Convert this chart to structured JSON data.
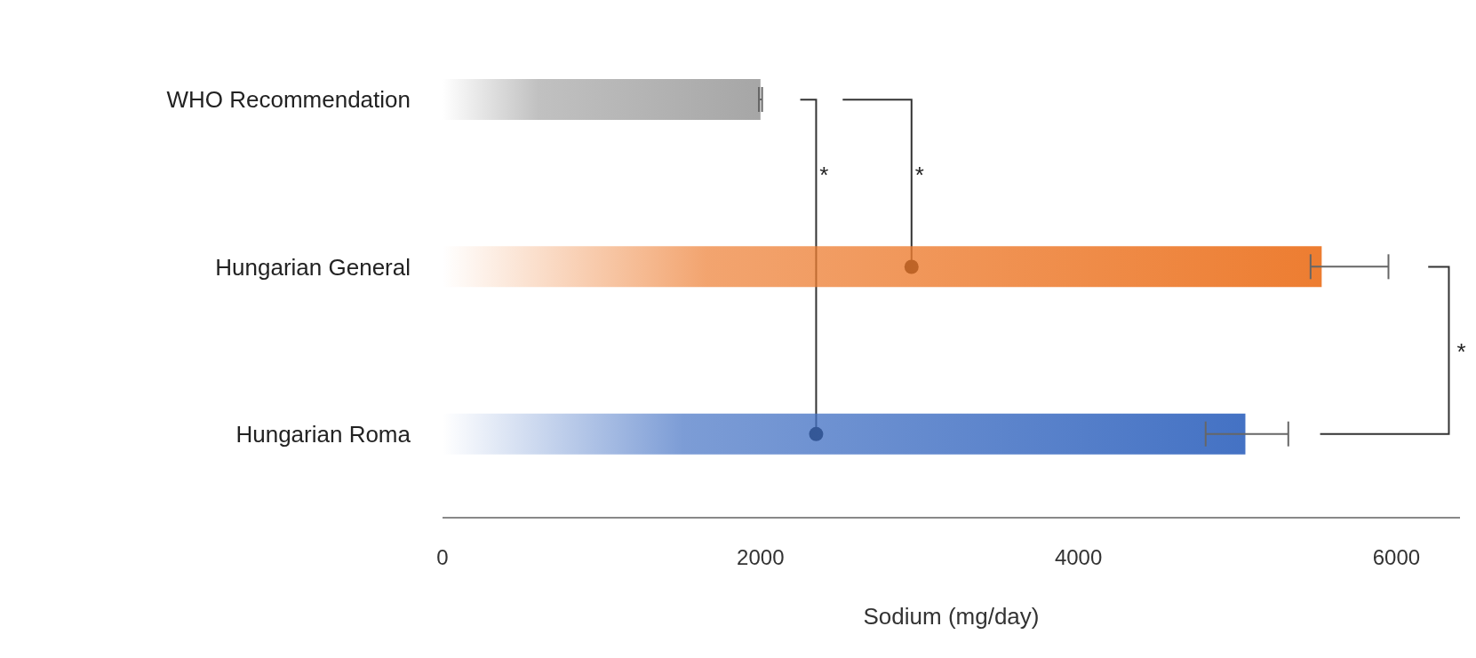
{
  "chart_data": {
    "type": "bar",
    "orientation": "horizontal",
    "categories": [
      "WHO Recommendation",
      "Hungarian General",
      "Hungarian Roma"
    ],
    "values": [
      2000,
      5530,
      5050
    ],
    "colors": [
      "#a6a6a6",
      "#ed7d31",
      "#4472c4"
    ],
    "errors": [
      10,
      [
        5460,
        5950
      ],
      [
        4800,
        5320
      ]
    ],
    "xlim": [
      0,
      6400
    ],
    "xticks": [
      0,
      2000,
      4000,
      6000
    ],
    "xlabel": "Sodium (mg/day)",
    "annotations": [
      "*",
      "*",
      "*"
    ],
    "grid": false,
    "legend": false
  }
}
